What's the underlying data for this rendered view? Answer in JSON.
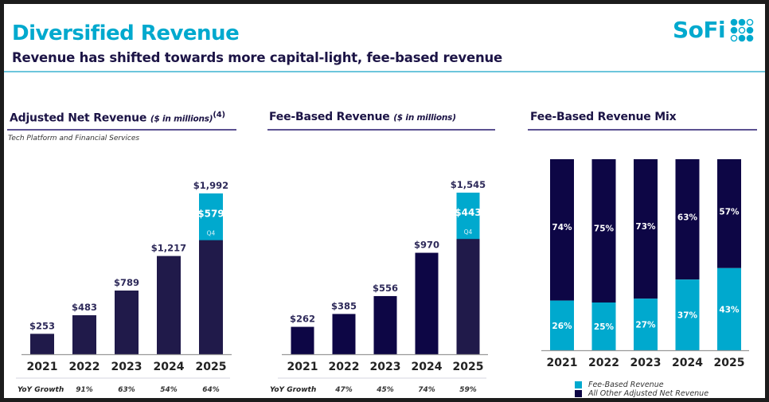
{
  "header": {
    "title": "Diversified Revenue",
    "subtitle": "Revenue has shifted towards more capital-light, fee-based revenue",
    "logo_text": "SoFi",
    "logo_icon": "sofi-dot-grid-icon"
  },
  "colors": {
    "brand_cyan": "#00a9ce",
    "navy": "#1c1446",
    "bar_navy": "#0d0645",
    "bar_navy_alt": "#201a4a",
    "legend_text": "#333333"
  },
  "sections": {
    "adjusted": {
      "title": "Adjusted Net Revenue",
      "unit": "($ in millions)",
      "footnote": "(4)",
      "note": "Tech Platform and Financial Services",
      "growth_label": "YoY Growth"
    },
    "fee": {
      "title": "Fee-Based Revenue",
      "unit": "($ in millions)",
      "growth_label": "YoY Growth"
    },
    "mix": {
      "title": "Fee-Based Revenue Mix"
    }
  },
  "legend": {
    "items": [
      {
        "label": "Fee-Based Revenue",
        "color": "#00a9ce"
      },
      {
        "label": "All Other Adjusted Net Revenue",
        "color": "#0d0645"
      }
    ]
  },
  "chart_data": [
    {
      "type": "bar",
      "title": "Adjusted Net Revenue ($ in millions)",
      "categories": [
        "2021",
        "2022",
        "2023",
        "2024",
        "2025"
      ],
      "values": [
        253,
        483,
        789,
        1217,
        1992
      ],
      "value_labels": [
        "$253",
        "$483",
        "$789",
        "$1,217",
        "$1,992"
      ],
      "highlight": {
        "category": "2025",
        "segment": "Q4",
        "value": 579,
        "label": "$579",
        "sublabel": "Q4"
      },
      "yoy_growth": [
        "",
        "91%",
        "63%",
        "54%",
        "64%"
      ],
      "xlabel": "",
      "ylabel": "",
      "ylim": [
        0,
        1992
      ],
      "grid": false
    },
    {
      "type": "bar",
      "title": "Fee-Based Revenue ($ in millions)",
      "categories": [
        "2021",
        "2022",
        "2023",
        "2024",
        "2025"
      ],
      "values": [
        262,
        385,
        556,
        970,
        1545
      ],
      "value_labels": [
        "$262",
        "$385",
        "$556",
        "$970",
        "$1,545"
      ],
      "highlight": {
        "category": "2025",
        "segment": "Q4",
        "value": 443,
        "label": "$443",
        "sublabel": "Q4"
      },
      "yoy_growth": [
        "",
        "47%",
        "45%",
        "74%",
        "59%"
      ],
      "xlabel": "",
      "ylabel": "",
      "ylim": [
        0,
        1545
      ],
      "grid": false
    },
    {
      "type": "bar",
      "stacked": true,
      "title": "Fee-Based Revenue Mix",
      "categories": [
        "2021",
        "2022",
        "2023",
        "2024",
        "2025"
      ],
      "series": [
        {
          "name": "Fee-Based Revenue",
          "values": [
            26,
            25,
            27,
            37,
            43
          ],
          "labels": [
            "26%",
            "25%",
            "27%",
            "37%",
            "43%"
          ]
        },
        {
          "name": "All Other Adjusted Net Revenue",
          "values": [
            74,
            75,
            73,
            63,
            57
          ],
          "labels": [
            "74%",
            "75%",
            "73%",
            "63%",
            "57%"
          ]
        }
      ],
      "ylim": [
        0,
        100
      ],
      "legend": "bottom",
      "grid": false
    }
  ]
}
